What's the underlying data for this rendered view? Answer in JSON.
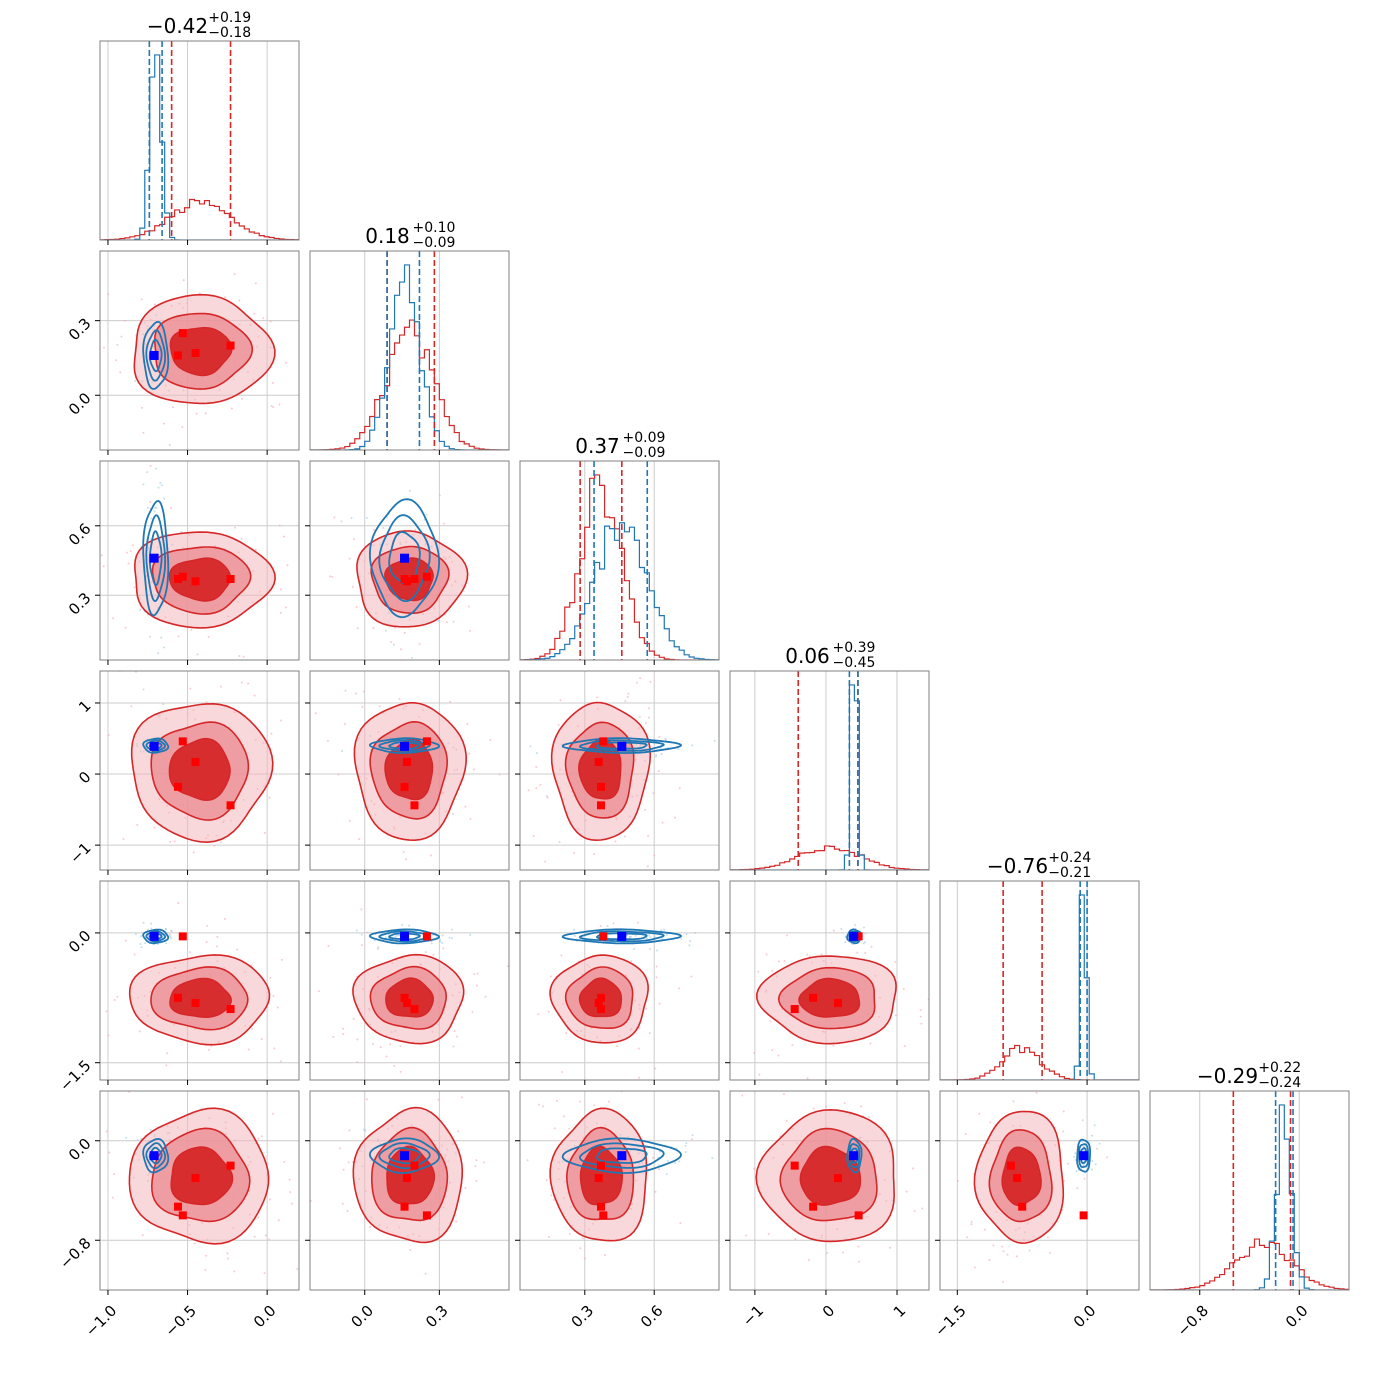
{
  "chart_data": {
    "type": "corner",
    "n_params": 6,
    "colors": {
      "red": "#d62728",
      "blue": "#1f77b4",
      "red_marker": "#ff0000",
      "blue_marker": "#0000ff",
      "grid": "#cccccc"
    },
    "titles": [
      {
        "value": "−0.42",
        "plus": "+0.19",
        "minus": "−0.18"
      },
      {
        "value": "0.18",
        "plus": "+0.10",
        "minus": "−0.09"
      },
      {
        "value": "0.37",
        "plus": "+0.09",
        "minus": "−0.09"
      },
      {
        "value": "0.06",
        "plus": "+0.39",
        "minus": "−0.45"
      },
      {
        "value": "−0.76",
        "plus": "+0.24",
        "minus": "−0.21"
      },
      {
        "value": "−0.29",
        "plus": "+0.22",
        "minus": "−0.24"
      }
    ],
    "axes": [
      {
        "range": [
          -1.05,
          0.2
        ],
        "ticks": [
          -1.0,
          -0.5,
          0.0
        ],
        "tick_labels": [
          "−1.0",
          "−0.5",
          "0.0"
        ]
      },
      {
        "range": [
          -0.22,
          0.58
        ],
        "ticks": [
          0.0,
          0.3
        ],
        "tick_labels": [
          "0.0",
          "0.3"
        ]
      },
      {
        "range": [
          0.02,
          0.88
        ],
        "ticks": [
          0.3,
          0.6
        ],
        "tick_labels": [
          "0.3",
          "0.6"
        ]
      },
      {
        "range": [
          -1.35,
          1.45
        ],
        "ticks": [
          -1,
          0,
          1
        ],
        "tick_labels": [
          "−1",
          "0",
          "1"
        ]
      },
      {
        "range": [
          -1.7,
          0.6
        ],
        "ticks": [
          -1.5,
          0.0
        ],
        "tick_labels": [
          "−1.5",
          "0.0"
        ]
      },
      {
        "range": [
          -1.2,
          0.4
        ],
        "ticks": [
          -0.8,
          0.0
        ],
        "tick_labels": [
          "−0.8",
          "0.0"
        ]
      }
    ],
    "red_quantiles": [
      [
        -0.6,
        -0.23
      ],
      [
        0.09,
        0.28
      ],
      [
        0.28,
        0.46
      ],
      [
        -0.39,
        0.45
      ],
      [
        -0.97,
        -0.52
      ],
      [
        -0.53,
        -0.07
      ]
    ],
    "blue_quantiles": [
      [
        -0.74,
        -0.66
      ],
      [
        0.09,
        0.22
      ],
      [
        0.34,
        0.57
      ],
      [
        0.33,
        0.45
      ],
      [
        -0.08,
        0.0
      ],
      [
        -0.19,
        -0.05
      ]
    ],
    "red_dist": [
      {
        "mean": -0.42,
        "sd": 0.19
      },
      {
        "mean": 0.18,
        "sd": 0.095
      },
      {
        "mean": 0.37,
        "sd": 0.09
      },
      {
        "mean": 0.06,
        "sd": 0.42
      },
      {
        "mean": -0.76,
        "sd": 0.22
      },
      {
        "mean": -0.29,
        "sd": 0.23
      }
    ],
    "blue_dist": [
      {
        "mean": -0.7,
        "sd": 0.035
      },
      {
        "mean": 0.16,
        "sd": 0.06
      },
      {
        "mean": 0.46,
        "sd": 0.11
      },
      {
        "mean": 0.4,
        "sd": 0.045
      },
      {
        "mean": -0.04,
        "sd": 0.035
      },
      {
        "mean": -0.12,
        "sd": 0.06
      }
    ],
    "blue_points": [
      -0.71,
      0.16,
      0.46,
      0.39,
      -0.04,
      -0.12
    ],
    "red_points": [
      [
        -0.23,
        0.2,
        0.37,
        -0.44,
        -0.88,
        -0.2
      ],
      [
        -0.45,
        0.17,
        0.36,
        0.17,
        -0.81,
        -0.3
      ],
      [
        -0.56,
        0.16,
        0.37,
        -0.18,
        -0.75,
        -0.53
      ],
      [
        -0.53,
        0.25,
        0.38,
        0.46,
        -0.04,
        -0.6
      ]
    ]
  }
}
